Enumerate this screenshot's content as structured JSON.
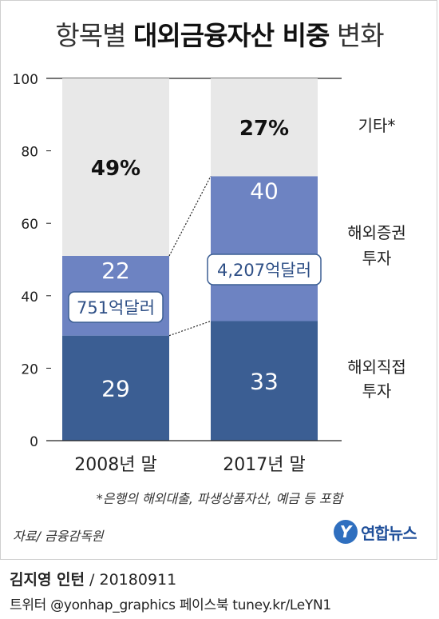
{
  "title": {
    "light_prefix": "항목별 ",
    "bold": "대외금융자산 비중",
    "light_suffix": " 변화"
  },
  "chart_data": {
    "type": "bar",
    "stacked": true,
    "categories": [
      "2008년 말",
      "2017년 말"
    ],
    "series": [
      {
        "name": "해외직접 투자",
        "values": [
          29,
          33
        ],
        "color": "#3b5e93",
        "label_lines": [
          "해외직접",
          "투자"
        ]
      },
      {
        "name": "해외증권 투자",
        "values": [
          22,
          40
        ],
        "color": "#6d83c2",
        "label_lines": [
          "해외증권",
          "투자"
        ]
      },
      {
        "name": "기타*",
        "values": [
          49,
          27
        ],
        "color": "#e8e8e8",
        "label_lines": [
          "기타*"
        ]
      }
    ],
    "data_labels": [
      [
        "29",
        "22",
        "49%"
      ],
      [
        "33",
        "40",
        "27%"
      ]
    ],
    "callouts": [
      "751억달러",
      "4,207억달러"
    ],
    "ylim": [
      0,
      100
    ],
    "yticks": [
      0,
      20,
      40,
      60,
      80,
      100
    ]
  },
  "footnote": "*은행의 해외대출, 파생상품자산, 예금 등 포함",
  "source": "자료/ 금융감독원",
  "logo": {
    "mark": "Y",
    "text": "연합뉴스"
  },
  "credit": {
    "name": "김지영 인턴",
    "date": " / 20180911"
  },
  "social": "트위터 @yonhap_graphics  페이스북 tuney.kr/LeYN1"
}
